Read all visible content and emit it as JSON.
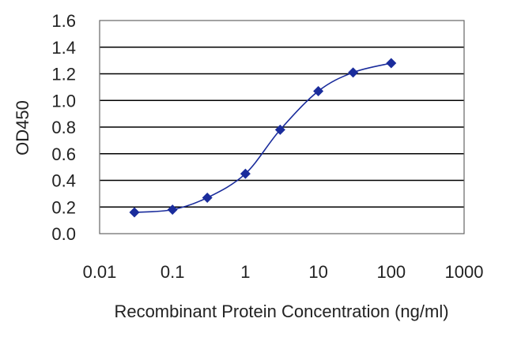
{
  "chart_data": {
    "type": "line",
    "title": "",
    "xlabel": "Recombinant Protein Concentration (ng/ml)",
    "ylabel": "OD450",
    "x_scale": "log",
    "xlim": [
      0.01,
      1000
    ],
    "ylim": [
      0.0,
      1.6
    ],
    "x_ticks": [
      "0.01",
      "0.1",
      "1",
      "10",
      "100",
      "1000"
    ],
    "y_ticks": [
      "0.0",
      "0.2",
      "0.4",
      "0.6",
      "0.8",
      "1.0",
      "1.2",
      "1.4",
      "1.6"
    ],
    "grid": "horizontal",
    "legend": "none",
    "series": [
      {
        "x": [
          0.03,
          0.1,
          0.3,
          1,
          3,
          10,
          30,
          100
        ],
        "values": [
          0.16,
          0.18,
          0.27,
          0.45,
          0.78,
          1.07,
          1.21,
          1.28
        ]
      }
    ],
    "colors": {
      "series": "#1a2c9c",
      "grid": "#000000",
      "frame": "#666666"
    }
  }
}
